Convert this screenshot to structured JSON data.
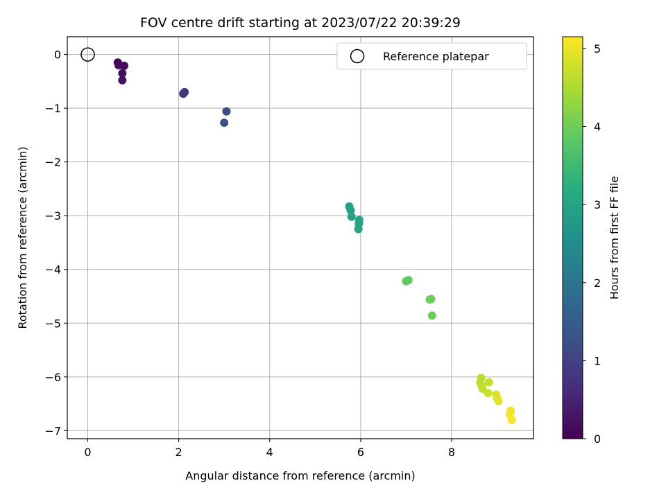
{
  "chart_data": {
    "type": "scatter",
    "title": "FOV centre drift starting at 2023/07/22 20:39:29",
    "xlabel": "Angular distance from reference (arcmin)",
    "ylabel": "Rotation from reference (arcmin)",
    "colorbar_label": "Hours from first FF file",
    "xlim": [
      -0.45,
      9.8
    ],
    "ylim": [
      -7.15,
      0.33
    ],
    "xticks": [
      0,
      2,
      4,
      6,
      8
    ],
    "yticks": [
      0,
      -1,
      -2,
      -3,
      -4,
      -5,
      -6,
      -7
    ],
    "colorbar_range": [
      0,
      5.15
    ],
    "colorbar_ticks": [
      0,
      1,
      2,
      3,
      4,
      5
    ],
    "colormap": "viridis",
    "grid": true,
    "legend": {
      "placement": "top-right",
      "entries": [
        "Reference platepar"
      ]
    },
    "reference_point": {
      "x": 0,
      "y": 0
    },
    "points": [
      {
        "x": 0.66,
        "y": -0.15,
        "t": 0.05
      },
      {
        "x": 0.68,
        "y": -0.2,
        "t": 0.1
      },
      {
        "x": 0.8,
        "y": -0.21,
        "t": 0.15
      },
      {
        "x": 0.76,
        "y": -0.35,
        "t": 0.2
      },
      {
        "x": 0.76,
        "y": -0.48,
        "t": 0.25
      },
      {
        "x": 2.1,
        "y": -0.73,
        "t": 0.75
      },
      {
        "x": 2.13,
        "y": -0.7,
        "t": 0.8
      },
      {
        "x": 3.05,
        "y": -1.06,
        "t": 1.15
      },
      {
        "x": 3.0,
        "y": -1.27,
        "t": 1.2
      },
      {
        "x": 5.75,
        "y": -2.83,
        "t": 2.9
      },
      {
        "x": 5.78,
        "y": -2.9,
        "t": 2.93
      },
      {
        "x": 5.8,
        "y": -3.02,
        "t": 2.96
      },
      {
        "x": 5.97,
        "y": -3.08,
        "t": 3.0
      },
      {
        "x": 5.96,
        "y": -3.15,
        "t": 3.03
      },
      {
        "x": 5.95,
        "y": -3.25,
        "t": 3.06
      },
      {
        "x": 7.0,
        "y": -4.22,
        "t": 3.85
      },
      {
        "x": 7.05,
        "y": -4.2,
        "t": 3.88
      },
      {
        "x": 7.52,
        "y": -4.56,
        "t": 3.95
      },
      {
        "x": 7.55,
        "y": -4.55,
        "t": 3.97
      },
      {
        "x": 7.57,
        "y": -4.86,
        "t": 4.0
      },
      {
        "x": 8.65,
        "y": -6.02,
        "t": 4.6
      },
      {
        "x": 8.63,
        "y": -6.1,
        "t": 4.62
      },
      {
        "x": 8.66,
        "y": -6.17,
        "t": 4.64
      },
      {
        "x": 8.68,
        "y": -6.22,
        "t": 4.66
      },
      {
        "x": 8.82,
        "y": -6.1,
        "t": 4.7
      },
      {
        "x": 8.8,
        "y": -6.3,
        "t": 4.72
      },
      {
        "x": 8.98,
        "y": -6.33,
        "t": 4.85
      },
      {
        "x": 9.0,
        "y": -6.4,
        "t": 4.88
      },
      {
        "x": 9.03,
        "y": -6.45,
        "t": 4.9
      },
      {
        "x": 9.3,
        "y": -6.63,
        "t": 5.05
      },
      {
        "x": 9.28,
        "y": -6.7,
        "t": 5.08
      },
      {
        "x": 9.32,
        "y": -6.8,
        "t": 5.12
      }
    ]
  }
}
